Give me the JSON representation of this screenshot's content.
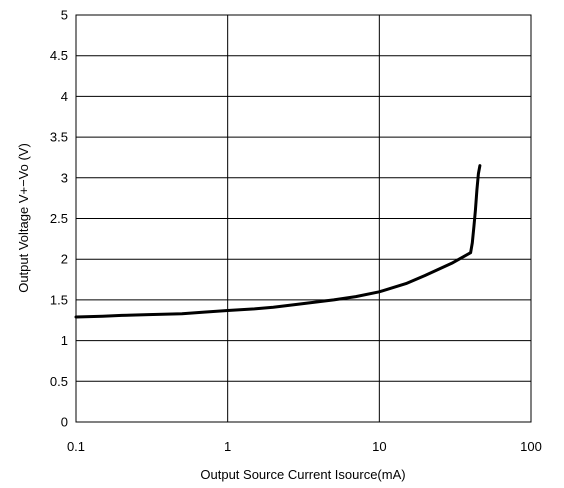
{
  "chart_data": {
    "type": "line",
    "title": "",
    "xlabel": "Output Source Current   Isource(mA)",
    "ylabel": "Output Voltage  V+−Vo  (V)",
    "xscale": "log",
    "xlim": [
      0.1,
      100
    ],
    "ylim": [
      0,
      5
    ],
    "grid": true,
    "x_ticks": [
      0.1,
      1,
      10,
      100
    ],
    "x_tick_labels": [
      "0.1",
      "1",
      "10",
      "100"
    ],
    "y_ticks": [
      0,
      0.5,
      1,
      1.5,
      2,
      2.5,
      3,
      3.5,
      4,
      4.5,
      5
    ],
    "y_tick_labels": [
      "0",
      "0.5",
      "1",
      "1.5",
      "2",
      "2.5",
      "3",
      "3.5",
      "4",
      "4.5",
      "5"
    ],
    "series": [
      {
        "x": [
          0.1,
          0.15,
          0.2,
          0.3,
          0.5,
          0.7,
          1,
          1.5,
          2,
          3,
          5,
          7,
          10,
          15,
          20,
          30,
          40,
          41,
          42,
          43,
          44,
          45,
          46
        ],
        "y": [
          1.29,
          1.3,
          1.31,
          1.32,
          1.33,
          1.35,
          1.37,
          1.39,
          1.41,
          1.45,
          1.5,
          1.54,
          1.6,
          1.7,
          1.8,
          1.95,
          2.08,
          2.2,
          2.4,
          2.6,
          2.85,
          3.05,
          3.15
        ]
      }
    ]
  }
}
